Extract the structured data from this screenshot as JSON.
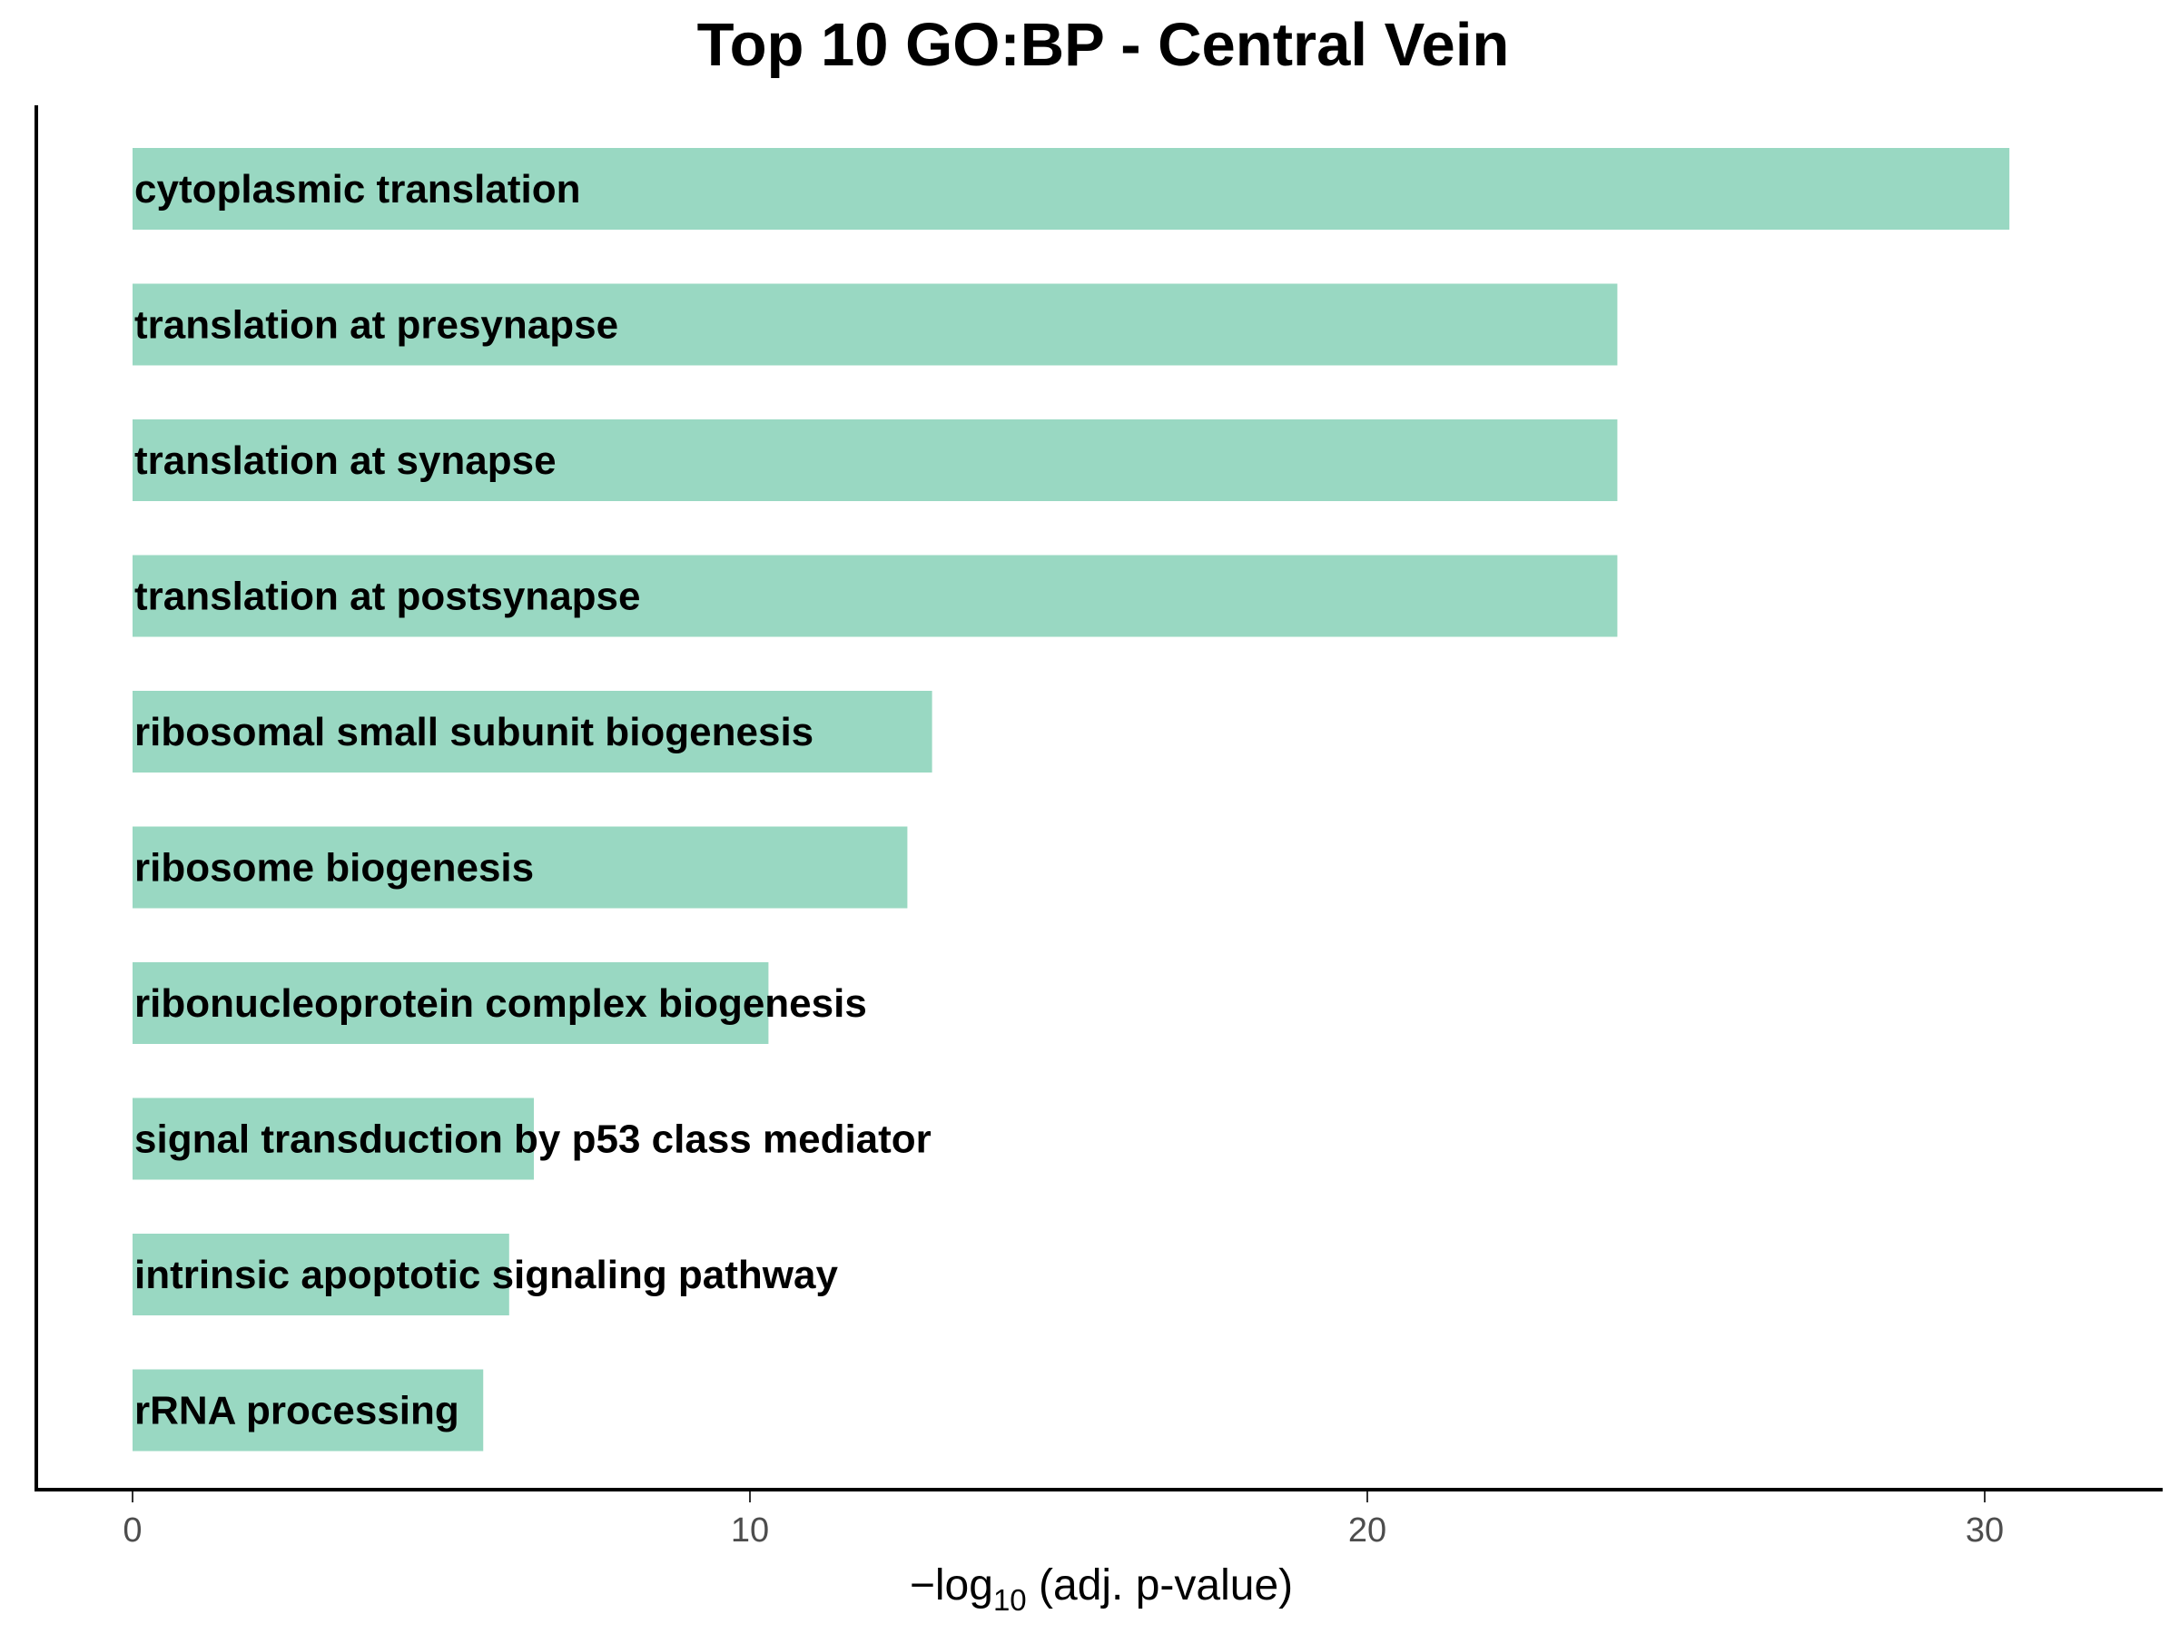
{
  "chart_data": {
    "type": "bar",
    "orientation": "horizontal",
    "title": "Top 10 GO:BP - Central Vein",
    "xlabel": {
      "prefix": "−log",
      "subscript": "10",
      "suffix": " (adj. p-value)"
    },
    "ylabel": "",
    "xlim": [
      0,
      32
    ],
    "xticks": [
      0,
      10,
      20,
      30
    ],
    "xtick_labels": [
      "0",
      "10",
      "20",
      "30"
    ],
    "grid": false,
    "legend": "none",
    "bar_color": "#99d8c2",
    "categories": [
      "cytoplasmic translation",
      "translation at presynapse",
      "translation at synapse",
      "translation at postsynapse",
      "ribosomal small subunit biogenesis",
      "ribosome biogenesis",
      "ribonucleoprotein complex biogenesis",
      "signal transduction by p53 class mediator",
      "intrinsic apoptotic signaling pathway",
      "rRNA processing"
    ],
    "values": [
      30.4,
      24.05,
      24.05,
      24.05,
      12.95,
      12.55,
      10.3,
      6.5,
      6.1,
      5.68
    ]
  }
}
